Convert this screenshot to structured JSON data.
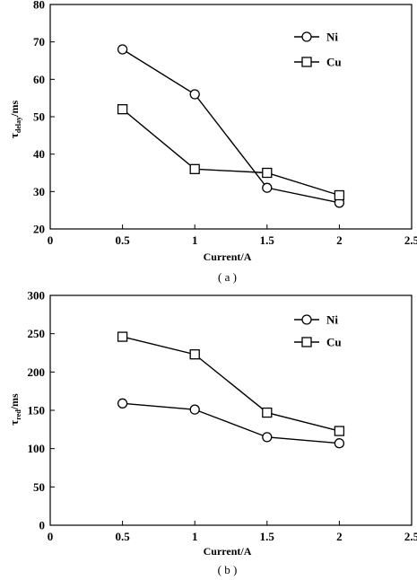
{
  "chart_data": [
    {
      "type": "line",
      "panel": "a",
      "caption": "( a )",
      "xlabel": "Current/A",
      "ylabel": "τ",
      "ylabel_subscript": "delay",
      "ylabel_unit": "/ms",
      "xlim": [
        0,
        2.5
      ],
      "ylim": [
        20,
        80
      ],
      "x_ticks": [
        "0",
        "0.5",
        "1",
        "1.5",
        "2",
        "2.5"
      ],
      "y_ticks": [
        "20",
        "30",
        "40",
        "50",
        "60",
        "70",
        "80"
      ],
      "legend_position": "top-right",
      "series": [
        {
          "name": "Ni",
          "marker": "circle",
          "x": [
            0.5,
            1,
            1.5,
            2
          ],
          "values": [
            68,
            56,
            31,
            27
          ]
        },
        {
          "name": "Cu",
          "marker": "square",
          "x": [
            0.5,
            1,
            1.5,
            2
          ],
          "values": [
            52,
            36,
            35,
            29
          ]
        }
      ]
    },
    {
      "type": "line",
      "panel": "b",
      "caption": "( b )",
      "xlabel": "Current/A",
      "ylabel": "τ",
      "ylabel_subscript": "red",
      "ylabel_unit": "/ms",
      "xlim": [
        0,
        2.5
      ],
      "ylim": [
        0,
        300
      ],
      "x_ticks": [
        "0",
        "0.5",
        "1",
        "1.5",
        "2",
        "2.5"
      ],
      "y_ticks": [
        "0",
        "50",
        "100",
        "150",
        "200",
        "250",
        "300"
      ],
      "legend_position": "top-right",
      "series": [
        {
          "name": "Ni",
          "marker": "circle",
          "x": [
            0.5,
            1,
            1.5,
            2
          ],
          "values": [
            159,
            151,
            115,
            107
          ]
        },
        {
          "name": "Cu",
          "marker": "square",
          "x": [
            0.5,
            1,
            1.5,
            2
          ],
          "values": [
            246,
            223,
            147,
            123
          ]
        }
      ]
    }
  ]
}
